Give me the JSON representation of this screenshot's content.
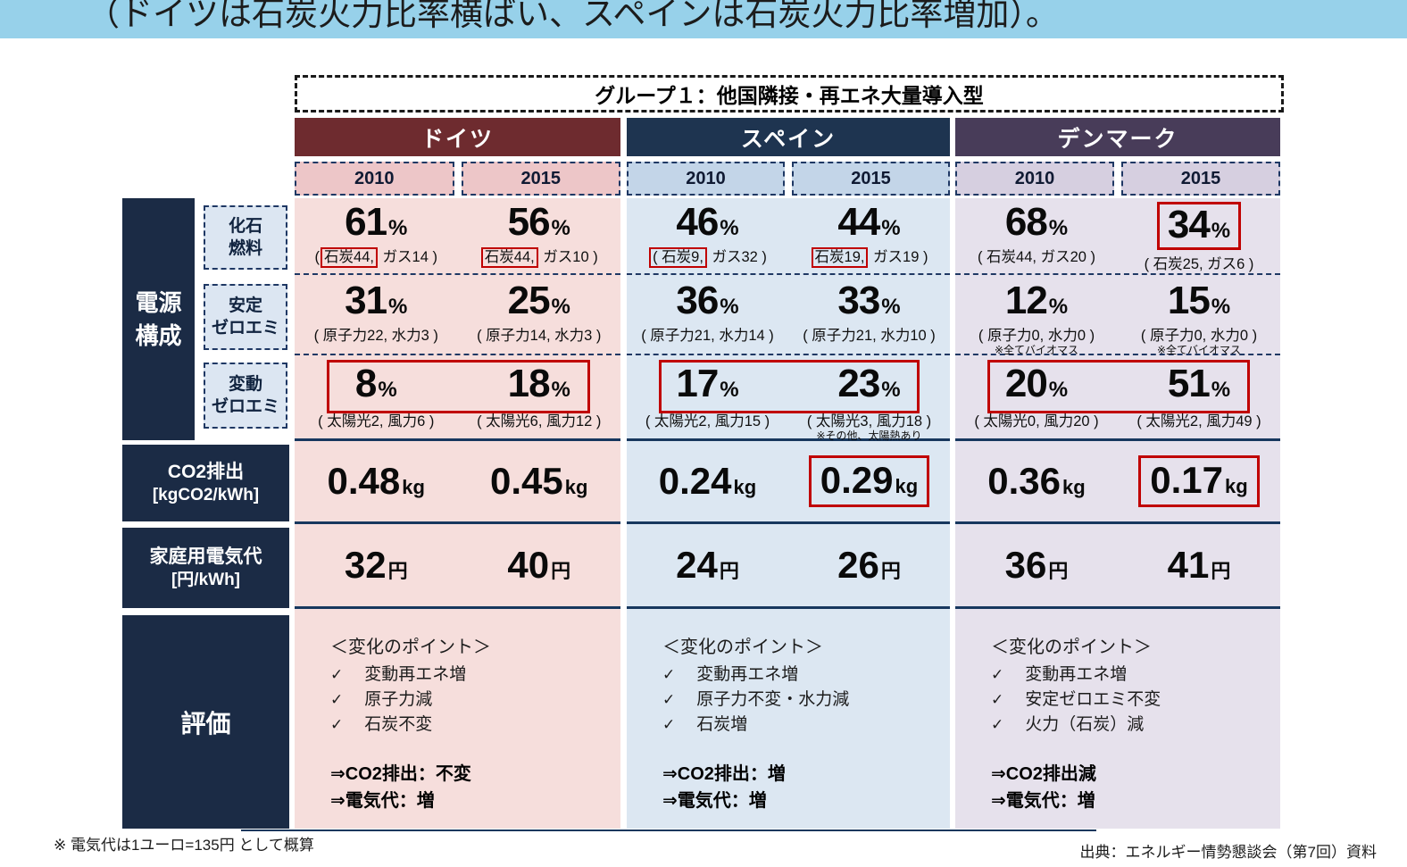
{
  "banner": {
    "text": "（ドイツは石炭火力比率横ばい、スペインは石炭火力比率増加）。"
  },
  "group_title": "グループ１：他国隣接・再エネ大量導入型",
  "labels": {
    "power_1": "電源",
    "power_2": "構成",
    "fossil_1": "化石",
    "fossil_2": "燃料",
    "stable_1": "安定",
    "stable_2": "ゼロエミ",
    "variable_1": "変動",
    "variable_2": "ゼロエミ",
    "co2_1": "CO2排出",
    "co2_2": "[kgCO2/kWh]",
    "elec_1": "家庭用電気代",
    "elec_2": "[円/kWh]",
    "eval": "評価"
  },
  "units": {
    "pct": "%"
  },
  "check_glyph": "✓",
  "countries": [
    {
      "name": "ドイツ",
      "years": [
        "2010",
        "2015"
      ],
      "fossil": [
        {
          "pct": "61",
          "open": "(",
          "coal": "石炭44,",
          "rest": " ガス14 )",
          "coal_boxed": true,
          "pct_boxed": false
        },
        {
          "pct": "56",
          "open": "",
          "coal": "石炭44,",
          "rest": " ガス10 )",
          "coal_boxed": true,
          "pct_boxed": false
        }
      ],
      "stable": [
        {
          "pct": "31",
          "detail": "( 原子力22, 水力3 )",
          "note": ""
        },
        {
          "pct": "25",
          "detail": "( 原子力14, 水力3 )",
          "note": ""
        }
      ],
      "variable": {
        "pair_boxed": true,
        "cells": [
          {
            "pct": "8",
            "detail": "( 太陽光2, 風力6 )",
            "note": ""
          },
          {
            "pct": "18",
            "detail": "( 太陽光6, 風力12 )",
            "note": ""
          }
        ]
      },
      "co2": [
        {
          "value": "0.48",
          "unit": "kg",
          "boxed": false
        },
        {
          "value": "0.45",
          "unit": "kg",
          "boxed": false
        }
      ],
      "elec": [
        {
          "value": "32",
          "unit": "円"
        },
        {
          "value": "40",
          "unit": "円"
        }
      ],
      "eval": {
        "header": "＜変化のポイント＞",
        "points": [
          "変動再エネ増",
          "原子力減",
          "石炭不変"
        ],
        "results": [
          "⇒CO2排出：不変",
          "⇒電気代：増"
        ]
      }
    },
    {
      "name": "スペイン",
      "years": [
        "2010",
        "2015"
      ],
      "fossil": [
        {
          "pct": "46",
          "open": "",
          "coal": "( 石炭9,",
          "rest": " ガス32 )",
          "coal_boxed": true,
          "pct_boxed": false
        },
        {
          "pct": "44",
          "open": "",
          "coal": "石炭19,",
          "rest": " ガス19 )",
          "coal_boxed": true,
          "pct_boxed": false
        }
      ],
      "stable": [
        {
          "pct": "36",
          "detail": "( 原子力21, 水力14 )",
          "note": ""
        },
        {
          "pct": "33",
          "detail": "( 原子力21, 水力10 )",
          "note": ""
        }
      ],
      "variable": {
        "pair_boxed": true,
        "cells": [
          {
            "pct": "17",
            "detail": "( 太陽光2, 風力15 )",
            "note": ""
          },
          {
            "pct": "23",
            "detail": "( 太陽光3, 風力18 )",
            "note": "※その他、太陽熱あり"
          }
        ]
      },
      "co2": [
        {
          "value": "0.24",
          "unit": "kg",
          "boxed": false
        },
        {
          "value": "0.29",
          "unit": "kg",
          "boxed": true
        }
      ],
      "elec": [
        {
          "value": "24",
          "unit": "円"
        },
        {
          "value": "26",
          "unit": "円"
        }
      ],
      "eval": {
        "header": "＜変化のポイント＞",
        "points": [
          "変動再エネ増",
          "原子力不変・水力減",
          "石炭増"
        ],
        "results": [
          "⇒CO2排出：増",
          "⇒電気代：増"
        ]
      }
    },
    {
      "name": "デンマーク",
      "years": [
        "2010",
        "2015"
      ],
      "fossil": [
        {
          "pct": "68",
          "open": "",
          "coal": "",
          "rest": "( 石炭44, ガス20 )",
          "coal_boxed": false,
          "pct_boxed": false
        },
        {
          "pct": "34",
          "open": "",
          "coal": "",
          "rest": "( 石炭25, ガス6 )",
          "coal_boxed": false,
          "pct_boxed": true
        }
      ],
      "stable": [
        {
          "pct": "12",
          "detail": "( 原子力0, 水力0 )",
          "note": "※全てバイオマス"
        },
        {
          "pct": "15",
          "detail": "( 原子力0, 水力0 )",
          "note": "※全てバイオマス"
        }
      ],
      "variable": {
        "pair_boxed": true,
        "cells": [
          {
            "pct": "20",
            "detail": "( 太陽光0, 風力20 )",
            "note": ""
          },
          {
            "pct": "51",
            "detail": "( 太陽光2, 風力49 )",
            "note": ""
          }
        ]
      },
      "co2": [
        {
          "value": "0.36",
          "unit": "kg",
          "boxed": false
        },
        {
          "value": "0.17",
          "unit": "kg",
          "boxed": true
        }
      ],
      "elec": [
        {
          "value": "36",
          "unit": "円"
        },
        {
          "value": "41",
          "unit": "円"
        }
      ],
      "eval": {
        "header": "＜変化のポイント＞",
        "points": [
          "変動再エネ増",
          "安定ゼロエミ不変",
          "火力（石炭）減"
        ],
        "results": [
          "⇒CO2排出減",
          "⇒電気代：増"
        ]
      }
    }
  ],
  "footer": {
    "note": "※ 電気代は1ユーロ=135円 として概算",
    "source": "出典：エネルギー情勢懇談会（第7回）資料"
  },
  "colors": {
    "banner_bg": "#97D1EA",
    "germany_header": "#6E2B2F",
    "germany_year_bg": "#EDC6C8",
    "germany_body_bg": "#F6DEDC",
    "spain_header": "#1E3450",
    "spain_year_bg": "#C3D5E8",
    "spain_body_bg": "#DCE7F2",
    "denmark_header": "#483C59",
    "denmark_year_bg": "#D6CFE0",
    "denmark_body_bg": "#E6E1EC",
    "label_bg": "#1B2B45",
    "sublabel_bg": "#DCE6F2",
    "highlight_red": "#C00000",
    "line_navy": "#17375E"
  }
}
